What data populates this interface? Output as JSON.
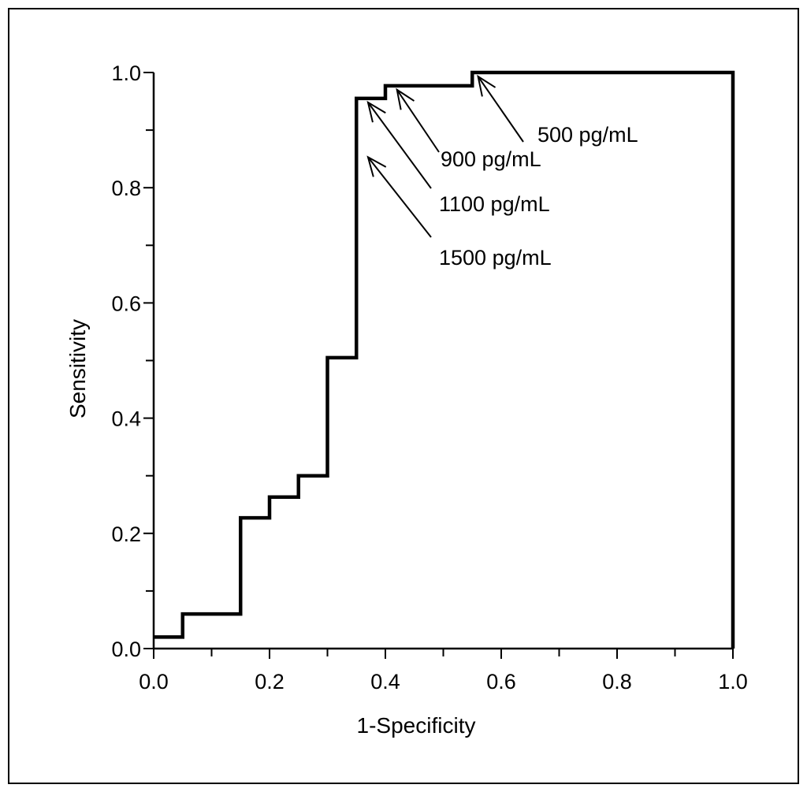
{
  "chart_data": {
    "type": "line",
    "xlabel": "1-Specificity",
    "ylabel": "Sensitivity",
    "xlim": [
      0.0,
      1.0
    ],
    "ylim": [
      0.0,
      1.0
    ],
    "x_tick_labels": [
      "0.0",
      "0.2",
      "0.4",
      "0.6",
      "0.8",
      "1.0"
    ],
    "y_tick_labels": [
      "0.0",
      "0.2",
      "0.4",
      "0.6",
      "0.8",
      "1.0"
    ],
    "grid": false,
    "series": [
      {
        "line_style": "step",
        "x": [
          0.0,
          0.05,
          0.05,
          0.15,
          0.15,
          0.2,
          0.2,
          0.25,
          0.25,
          0.3,
          0.3,
          0.35,
          0.35,
          0.4,
          0.4,
          0.55,
          0.55,
          1.0,
          1.0
        ],
        "y": [
          0.02,
          0.02,
          0.06,
          0.06,
          0.227,
          0.227,
          0.263,
          0.263,
          0.3,
          0.3,
          0.505,
          0.505,
          0.955,
          0.955,
          0.977,
          0.977,
          1.0,
          1.0,
          0.0
        ]
      }
    ],
    "annotations": [
      {
        "text": "500 pg/mL",
        "x": 0.56,
        "y": 1.0
      },
      {
        "text": "900 pg/mL",
        "x": 0.42,
        "y": 0.977
      },
      {
        "text": "1100 pg/mL",
        "x": 0.37,
        "y": 0.955
      },
      {
        "text": "1500 pg/mL",
        "x": 0.37,
        "y": 0.86
      }
    ]
  }
}
